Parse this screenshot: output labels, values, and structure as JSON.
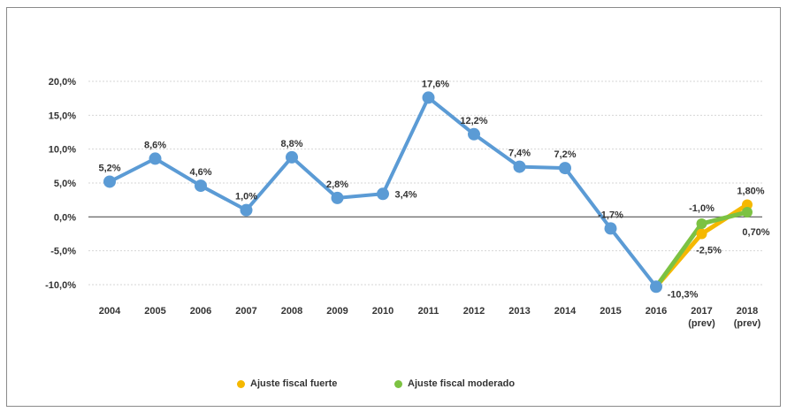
{
  "chart_data": {
    "type": "line",
    "ylim": [
      -10,
      20
    ],
    "yticks": [
      "20,0%",
      "15,0%",
      "10,0%",
      "5,0%",
      "0,0%",
      "-5,0%",
      "-10,0%"
    ],
    "ytick_values": [
      20,
      15,
      10,
      5,
      0,
      -5,
      -10
    ],
    "categories": [
      "2004",
      "2005",
      "2006",
      "2007",
      "2008",
      "2009",
      "2010",
      "2011",
      "2012",
      "2013",
      "2014",
      "2015",
      "2016",
      "2017",
      "2018"
    ],
    "category_sublabels": [
      "",
      "",
      "",
      "",
      "",
      "",
      "",
      "",
      "",
      "",
      "",
      "",
      "",
      "(prev)",
      "(prev)"
    ],
    "grid": true,
    "legend_position": "bottom",
    "series": [
      {
        "name": "",
        "color": "#5b9bd5",
        "x": [
          "2004",
          "2005",
          "2006",
          "2007",
          "2008",
          "2009",
          "2010",
          "2011",
          "2012",
          "2013",
          "2014",
          "2015",
          "2016"
        ],
        "values": [
          5.2,
          8.6,
          4.6,
          1.0,
          8.8,
          2.8,
          3.4,
          17.6,
          12.2,
          7.4,
          7.2,
          -1.7,
          -10.3
        ],
        "labels": [
          "5,2%",
          "8,6%",
          "4,6%",
          "1,0%",
          "8,8%",
          "2,8%",
          "3,4%",
          "17,6%",
          "12,2%",
          "7,4%",
          "7,2%",
          "-1,7%",
          "-10,3%"
        ]
      },
      {
        "name": "Ajuste fiscal fuerte",
        "color": "#f5b800",
        "x": [
          "2016",
          "2017",
          "2018"
        ],
        "values": [
          -10.3,
          -2.5,
          1.8
        ],
        "labels": [
          "",
          "-2,5%",
          "1,80%"
        ]
      },
      {
        "name": "Ajuste fiscal moderado",
        "color": "#7cc242",
        "x": [
          "2016",
          "2017",
          "2018"
        ],
        "values": [
          -10.3,
          -1.0,
          0.7
        ],
        "labels": [
          "",
          "-1,0%",
          "0,70%"
        ]
      }
    ]
  }
}
